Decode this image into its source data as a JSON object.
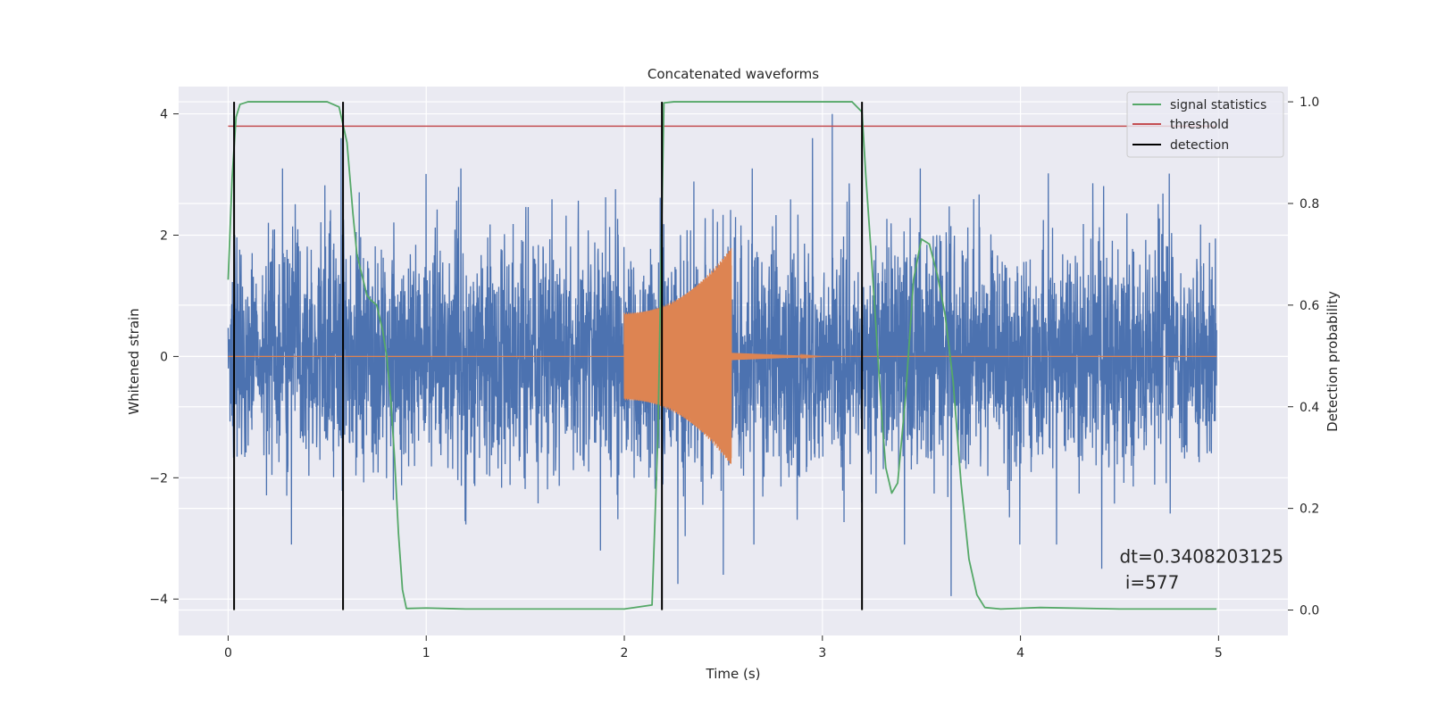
{
  "chart_data": {
    "type": "line",
    "title": "Concatenated waveforms",
    "xlabel": "Time (s)",
    "ylabel": "Whitened strain",
    "y2label": "Detection probability",
    "xlim": [
      -0.25,
      5.35
    ],
    "ylim": [
      -4.6,
      4.45
    ],
    "y2lim": [
      -0.05,
      1.03
    ],
    "x_ticks": [
      0,
      1,
      2,
      3,
      4,
      5
    ],
    "y_ticks": [
      -4,
      -2,
      0,
      2,
      4
    ],
    "y2_ticks": [
      0.0,
      0.2,
      0.4,
      0.6,
      0.8,
      1.0
    ],
    "y2_tick_labels": [
      "0.0",
      "0.2",
      "0.4",
      "0.6",
      "0.8",
      "1.0"
    ],
    "y_tick_labels": [
      "−4",
      "−2",
      "0",
      "2",
      "4"
    ],
    "x_tick_labels": [
      "0",
      "1",
      "2",
      "3",
      "4",
      "5"
    ],
    "grid": true,
    "legend_position": "top-right",
    "colors": {
      "background": "#eaeaf2",
      "grid": "#ffffff",
      "strain": "#4c72b0",
      "waveform": "#dd8452",
      "statistics": "#55a868",
      "threshold": "#c44e52",
      "detection": "#000000"
    },
    "series": [
      {
        "name": "",
        "axis": "left",
        "kind": "noise",
        "x_range": [
          0.0,
          4.99
        ],
        "amplitude_envelope": [
          [
            0.0,
            1.0
          ],
          [
            1.0,
            1.0
          ],
          [
            2.0,
            1.0
          ],
          [
            3.0,
            1.0
          ],
          [
            4.0,
            1.0
          ],
          [
            5.0,
            1.0
          ]
        ],
        "peaks": [
          {
            "x": 2.19,
            "y": 3.75
          },
          {
            "x": 3.05,
            "y": 4.0
          },
          {
            "x": 2.95,
            "y": 3.6
          },
          {
            "x": 0.57,
            "y": 3.6
          },
          {
            "x": 3.2,
            "y": 3.5
          },
          {
            "x": 0.32,
            "y": -3.1
          },
          {
            "x": 2.27,
            "y": -3.75
          },
          {
            "x": 2.5,
            "y": -3.6
          },
          {
            "x": 3.65,
            "y": -3.95
          },
          {
            "x": 4.41,
            "y": -3.5
          },
          {
            "x": 1.88,
            "y": -3.2
          }
        ]
      },
      {
        "name": "",
        "axis": "left",
        "kind": "chirp",
        "x_range": [
          2.0,
          2.54
        ],
        "amplitude_start": 0.72,
        "amplitude_end": 1.8,
        "tail_x_range": [
          2.54,
          3.0
        ],
        "tail_amplitude": 0.06
      },
      {
        "name": "signal statistics",
        "axis": "right",
        "x": [
          0.0,
          0.02,
          0.04,
          0.06,
          0.1,
          0.2,
          0.5,
          0.56,
          0.6,
          0.63,
          0.65,
          0.7,
          0.72,
          0.75,
          0.78,
          0.8,
          0.82,
          0.84,
          0.86,
          0.88,
          0.9,
          1.0,
          1.2,
          1.5,
          2.0,
          2.14,
          2.17,
          2.2,
          2.25,
          2.5,
          3.0,
          3.15,
          3.2,
          3.22,
          3.25,
          3.28,
          3.3,
          3.32,
          3.35,
          3.38,
          3.42,
          3.46,
          3.5,
          3.54,
          3.58,
          3.62,
          3.66,
          3.7,
          3.74,
          3.78,
          3.82,
          3.9,
          4.1,
          4.5,
          4.99
        ],
        "y": [
          0.65,
          0.85,
          0.97,
          0.995,
          1.0,
          1.0,
          1.0,
          0.99,
          0.92,
          0.78,
          0.7,
          0.62,
          0.61,
          0.6,
          0.55,
          0.5,
          0.42,
          0.3,
          0.15,
          0.04,
          0.003,
          0.004,
          0.002,
          0.002,
          0.002,
          0.01,
          0.35,
          0.998,
          1.0,
          1.0,
          1.0,
          1.0,
          0.98,
          0.85,
          0.68,
          0.5,
          0.38,
          0.28,
          0.23,
          0.25,
          0.42,
          0.65,
          0.73,
          0.72,
          0.66,
          0.58,
          0.45,
          0.25,
          0.1,
          0.03,
          0.005,
          0.002,
          0.005,
          0.002,
          0.002
        ]
      },
      {
        "name": "threshold",
        "axis": "right",
        "x": [
          0.0,
          4.99
        ],
        "y": [
          0.952,
          0.952
        ]
      },
      {
        "name": "detection",
        "axis": "right",
        "x_positions": [
          0.03,
          0.58,
          2.19,
          3.2
        ],
        "y_range": [
          0.0,
          1.0
        ]
      }
    ],
    "annotation": {
      "lines": [
        "dt=0.3408203125",
        " i=577"
      ],
      "x": 4.5,
      "y": -3.4
    }
  }
}
